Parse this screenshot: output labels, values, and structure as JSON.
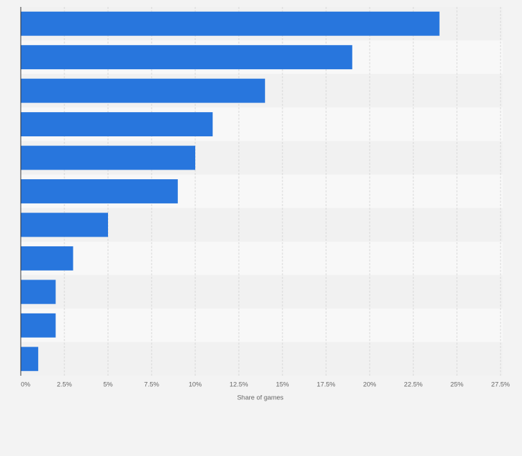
{
  "chart_data": {
    "type": "barh",
    "x_label": "Share of games",
    "categories": [
      null,
      null,
      null,
      null,
      null,
      null,
      null,
      null,
      null,
      null,
      null
    ],
    "values": [
      24,
      19,
      14,
      11,
      10,
      9,
      5,
      3,
      2,
      2,
      1
    ],
    "color": "#2876dd",
    "xlim": [
      0,
      27.5
    ],
    "xticks": [
      {
        "value": 0,
        "label": "0%"
      },
      {
        "value": 2.5,
        "label": "2.5%"
      },
      {
        "value": 5,
        "label": "5%"
      },
      {
        "value": 7.5,
        "label": "7.5%"
      },
      {
        "value": 10,
        "label": "10%"
      },
      {
        "value": 12.5,
        "label": "12.5%"
      },
      {
        "value": 15,
        "label": "15%"
      },
      {
        "value": 17.5,
        "label": "17.5%"
      },
      {
        "value": 20,
        "label": "20%"
      },
      {
        "value": 22.5,
        "label": "22.5%"
      },
      {
        "value": 25,
        "label": "25%"
      },
      {
        "value": 27.5,
        "label": "27.5%"
      }
    ],
    "grid": true
  }
}
